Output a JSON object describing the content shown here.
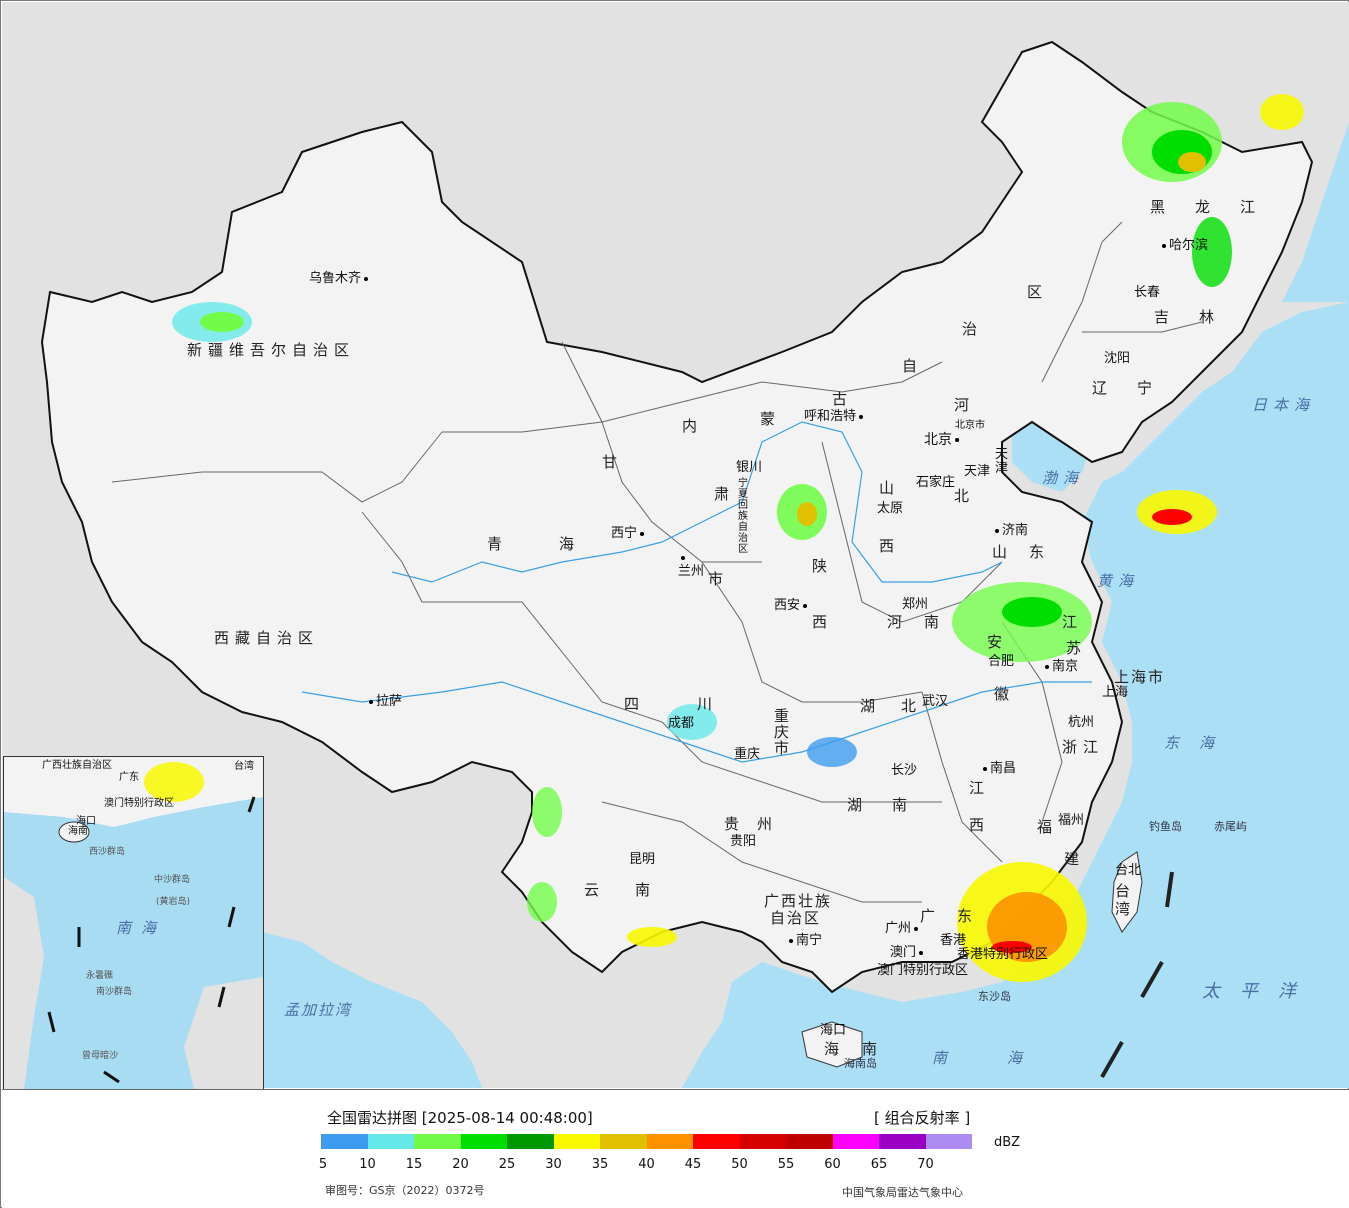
{
  "map": {
    "region_labels": [
      {
        "id": "xinjiang",
        "text": "新疆维吾尔自治区"
      },
      {
        "id": "xizang",
        "text": "西藏自治区"
      },
      {
        "id": "qinghai1",
        "text": "青"
      },
      {
        "id": "qinghai2",
        "text": "海"
      },
      {
        "id": "gansu1",
        "text": "甘"
      },
      {
        "id": "gansu2",
        "text": "肃"
      },
      {
        "id": "nm1",
        "text": "内"
      },
      {
        "id": "nm2",
        "text": "蒙"
      },
      {
        "id": "nm3",
        "text": "古"
      },
      {
        "id": "nm4",
        "text": "自"
      },
      {
        "id": "nm5",
        "text": "治"
      },
      {
        "id": "nm6",
        "text": "区"
      },
      {
        "id": "hlj",
        "text": "黑龙江"
      },
      {
        "id": "jilin",
        "text": "吉林"
      },
      {
        "id": "liaoning",
        "text": "辽宁"
      },
      {
        "id": "hebei1",
        "text": "河"
      },
      {
        "id": "hebei2",
        "text": "北"
      },
      {
        "id": "shanxi1",
        "text": "山"
      },
      {
        "id": "shanxi2",
        "text": "西"
      },
      {
        "id": "shaanxi1",
        "text": "陕"
      },
      {
        "id": "shaanxi2",
        "text": "西"
      },
      {
        "id": "shandong",
        "text": "山东"
      },
      {
        "id": "henan",
        "text": "河南"
      },
      {
        "id": "jiangsu1",
        "text": "江"
      },
      {
        "id": "jiangsu2",
        "text": "苏"
      },
      {
        "id": "anhui1",
        "text": "安"
      },
      {
        "id": "anhui2",
        "text": "徽"
      },
      {
        "id": "hubei",
        "text": "湖北"
      },
      {
        "id": "sichuan1",
        "text": "四"
      },
      {
        "id": "sichuan2",
        "text": "川"
      },
      {
        "id": "chongqing",
        "text": "重庆市"
      },
      {
        "id": "guizhou",
        "text": "贵州"
      },
      {
        "id": "yunnan",
        "text": "云南"
      },
      {
        "id": "hunan",
        "text": "湖南"
      },
      {
        "id": "jiangxi1",
        "text": "江"
      },
      {
        "id": "jiangxi2",
        "text": "西"
      },
      {
        "id": "zhejiang",
        "text": "浙江"
      },
      {
        "id": "fujian1",
        "text": "福"
      },
      {
        "id": "fujian2",
        "text": "建"
      },
      {
        "id": "guangxi1",
        "text": "广西壮族"
      },
      {
        "id": "guangxi2",
        "text": "自治区"
      },
      {
        "id": "guangdong1",
        "text": "广"
      },
      {
        "id": "guangdong2",
        "text": "东"
      },
      {
        "id": "hainan1",
        "text": "海"
      },
      {
        "id": "hainan2",
        "text": "南"
      },
      {
        "id": "ningxia",
        "text": "宁夏回族自治区"
      },
      {
        "id": "shanghai",
        "text": "上海市"
      },
      {
        "id": "tianjin",
        "text": "天津"
      },
      {
        "id": "beijing_r",
        "text": "北京市"
      },
      {
        "id": "taiwan",
        "text": "台湾"
      },
      {
        "id": "hk",
        "text": "香港特别行政区"
      },
      {
        "id": "macau",
        "text": "澳门特别行政区"
      },
      {
        "id": "hainan_island",
        "text": "海南岛"
      },
      {
        "id": "dongsha",
        "text": "东沙岛"
      },
      {
        "id": "diaoyu",
        "text": "钓鱼岛"
      },
      {
        "id": "chiwei",
        "text": "赤尾屿"
      },
      {
        "id": "lanzhou_shi",
        "text": "市"
      }
    ],
    "cities": [
      {
        "id": "urumqi",
        "text": "乌鲁木齐"
      },
      {
        "id": "lhasa",
        "text": "拉萨"
      },
      {
        "id": "xining",
        "text": "西宁"
      },
      {
        "id": "lanzhou",
        "text": "兰州"
      },
      {
        "id": "yinchuan",
        "text": "银川"
      },
      {
        "id": "hohhot",
        "text": "呼和浩特"
      },
      {
        "id": "beijing",
        "text": "北京"
      },
      {
        "id": "shijiazhuang",
        "text": "石家庄"
      },
      {
        "id": "taiyuan",
        "text": "太原"
      },
      {
        "id": "jinan",
        "text": "济南"
      },
      {
        "id": "xian",
        "text": "西安"
      },
      {
        "id": "zhengzhou",
        "text": "郑州"
      },
      {
        "id": "hefei",
        "text": "合肥"
      },
      {
        "id": "nanjing",
        "text": "南京"
      },
      {
        "id": "shanghai_c",
        "text": "上海"
      },
      {
        "id": "hangzhou",
        "text": "杭州"
      },
      {
        "id": "wuhan",
        "text": "武汉"
      },
      {
        "id": "chengdu",
        "text": "成都"
      },
      {
        "id": "chongqing_c",
        "text": "重庆"
      },
      {
        "id": "guiyang",
        "text": "贵阳"
      },
      {
        "id": "kunming",
        "text": "昆明"
      },
      {
        "id": "changsha",
        "text": "长沙"
      },
      {
        "id": "nanchang",
        "text": "南昌"
      },
      {
        "id": "fuzhou",
        "text": "福州"
      },
      {
        "id": "taibei",
        "text": "台北"
      },
      {
        "id": "guangzhou",
        "text": "广州"
      },
      {
        "id": "hongkong",
        "text": "香港"
      },
      {
        "id": "aomen",
        "text": "澳门"
      },
      {
        "id": "nanning",
        "text": "南宁"
      },
      {
        "id": "haikou",
        "text": "海口"
      },
      {
        "id": "shenyang",
        "text": "沈阳"
      },
      {
        "id": "changchun",
        "text": "长春"
      },
      {
        "id": "harbin",
        "text": "哈尔滨"
      },
      {
        "id": "tianjin_c",
        "text": "天津"
      }
    ],
    "seas": [
      {
        "id": "japan_sea",
        "text": "日本海"
      },
      {
        "id": "bohai",
        "text": "渤海"
      },
      {
        "id": "huanghai",
        "text": "黄海"
      },
      {
        "id": "donghai",
        "text": "东海"
      },
      {
        "id": "nanhai",
        "text": "南海"
      },
      {
        "id": "taipingyang",
        "text": "太平洋"
      },
      {
        "id": "mengjiala",
        "text": "孟加拉湾"
      }
    ],
    "inset_labels": [
      {
        "id": "i_guangxi",
        "text": "广西壮族自治区"
      },
      {
        "id": "i_guangdong",
        "text": "广东"
      },
      {
        "id": "i_taiwan",
        "text": "台湾"
      },
      {
        "id": "i_aomen",
        "text": "澳门特别行政区"
      },
      {
        "id": "i_haikou",
        "text": "海口"
      },
      {
        "id": "i_hainan",
        "text": "海南"
      },
      {
        "id": "i_xisha",
        "text": "西沙群岛"
      },
      {
        "id": "i_zhongsha",
        "text": "中沙群岛"
      },
      {
        "id": "i_huangyan",
        "text": "(黄岩岛)"
      },
      {
        "id": "i_nanhai",
        "text": "南海"
      },
      {
        "id": "i_nansha",
        "text": "南沙群岛"
      },
      {
        "id": "i_yongshu",
        "text": "永暑礁"
      },
      {
        "id": "i_zengmu",
        "text": "曾母暗沙"
      }
    ],
    "colors": {
      "sea": "#aadff5",
      "land_china": "#f3f3f3",
      "land_other": "#e2e2e2",
      "border": "#111111",
      "river": "#3aa0e6"
    }
  },
  "legend": {
    "title": "全国雷达拼图 [2025-08-14 00:48:00]",
    "product": "[ 组合反射率 ]",
    "unit": "dBZ",
    "ticks": [
      "5",
      "10",
      "15",
      "20",
      "25",
      "30",
      "35",
      "40",
      "45",
      "50",
      "55",
      "60",
      "65",
      "70"
    ],
    "colors": [
      "#3d9cef",
      "#66e8e8",
      "#72fc4a",
      "#00de00",
      "#009800",
      "#f8f800",
      "#e0c000",
      "#fc9200",
      "#fc0000",
      "#d60000",
      "#c00000",
      "#fc00fc",
      "#9a00c2",
      "#ac8cf0"
    ],
    "approval": "审图号：GS京（2022）0372号",
    "source": "中国气象局雷达气象中心"
  }
}
